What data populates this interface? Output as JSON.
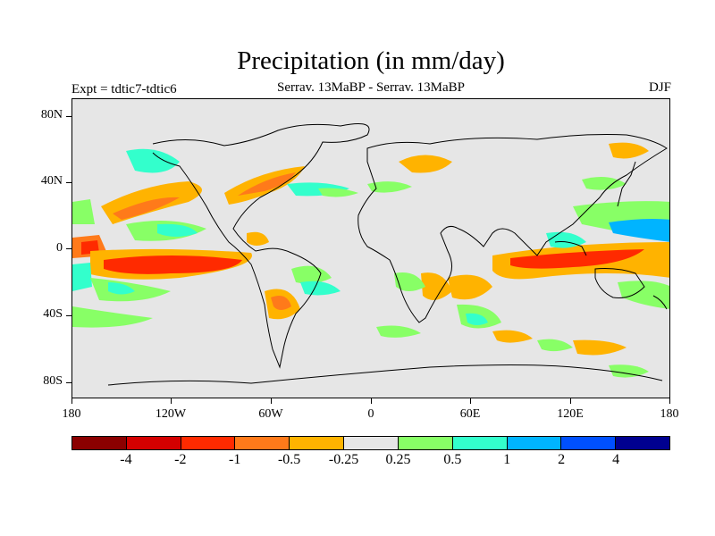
{
  "title": "Precipitation (in mm/day)",
  "experiment": "Expt = tdtic7-tdtic6",
  "subtitle": "Serrav.   13MaBP - Serrav.   13MaBP",
  "season": "DJF",
  "y_axis_labels": [
    "80N",
    "40N",
    "0",
    "40S",
    "80S"
  ],
  "x_axis_labels": [
    "180",
    "120W",
    "60W",
    "0",
    "60E",
    "120E",
    "180"
  ],
  "colorbar": {
    "labels": [
      "-4",
      "-2",
      "-1",
      "-0.5",
      "-0.25",
      "0.25",
      "0.5",
      "1",
      "2",
      "4"
    ],
    "colors": [
      "#8b0000",
      "#d40000",
      "#ff2a00",
      "#ff7a1a",
      "#ffb300",
      "#e6e6e6",
      "#88ff66",
      "#33ffcc",
      "#00b4ff",
      "#0050ff",
      "#000090"
    ]
  }
}
